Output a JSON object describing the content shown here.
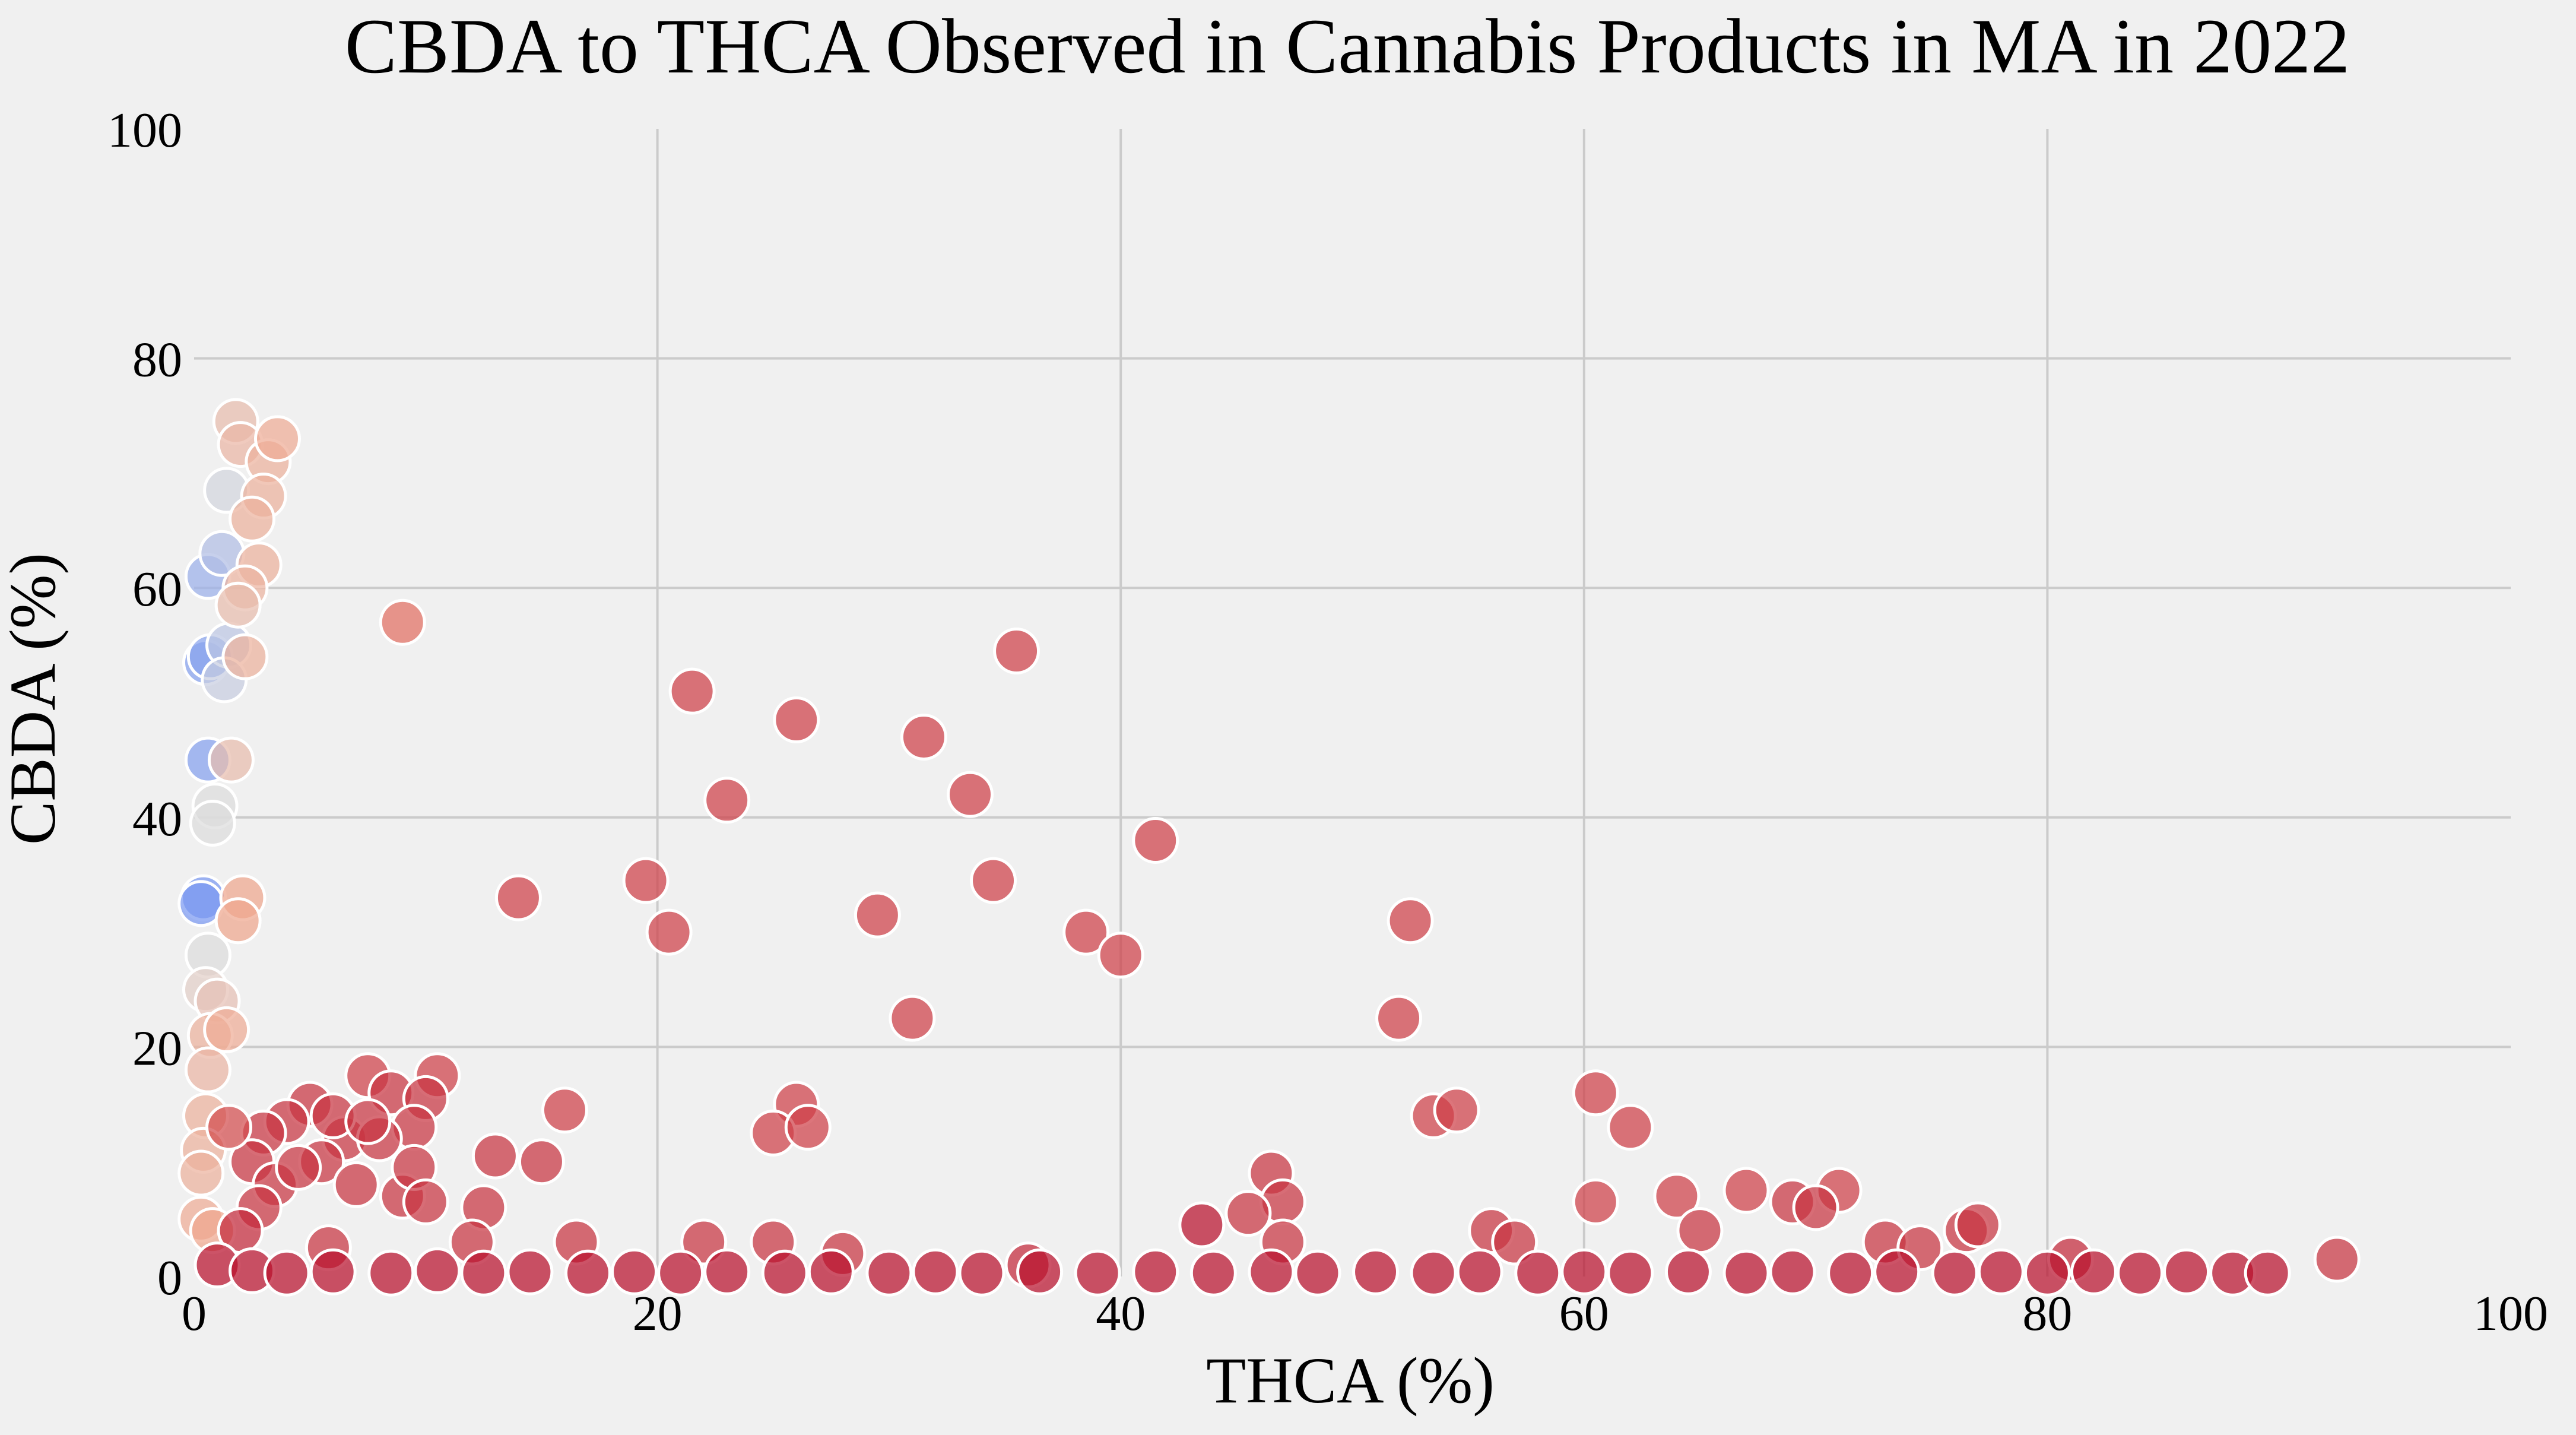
{
  "chart_data": {
    "type": "scatter",
    "title": "CBDA to THCA Observed in Cannabis Products in MA in 2022",
    "xlabel": "THCA (%)",
    "ylabel": "CBDA (%)",
    "xlim": [
      0,
      100
    ],
    "ylim": [
      0,
      100
    ],
    "xticks": [
      "0",
      "20",
      "40",
      "60",
      "80",
      "100"
    ],
    "yticks": [
      "0",
      "20",
      "40",
      "60",
      "80",
      "100"
    ],
    "grid": true,
    "legend": "none",
    "colormap": "coolwarm",
    "colors": {
      "background": "#f0f0f0",
      "grid": "#cbcbcb",
      "marker_edge": "#ffffff",
      "low": "#6f92f3",
      "mid": "#dddcdc",
      "high": "#b40426"
    },
    "points": [
      [
        0.4,
        33,
        0.05
      ],
      [
        0.3,
        32.5,
        0.05
      ],
      [
        0.6,
        45,
        0.1
      ],
      [
        0.5,
        53.5,
        0.1
      ],
      [
        0.7,
        54,
        0.12
      ],
      [
        0.6,
        61,
        0.2
      ],
      [
        1.2,
        63,
        0.3
      ],
      [
        1.5,
        55,
        0.35
      ],
      [
        1.3,
        52,
        0.4
      ],
      [
        1.4,
        68.5,
        0.45
      ],
      [
        0.9,
        41,
        0.5
      ],
      [
        0.8,
        39.5,
        0.5
      ],
      [
        0.6,
        28,
        0.5
      ],
      [
        0.5,
        25,
        0.55
      ],
      [
        1.0,
        24,
        0.6
      ],
      [
        1.8,
        74.5,
        0.62
      ],
      [
        2.0,
        72.5,
        0.64
      ],
      [
        3.2,
        71,
        0.66
      ],
      [
        3.6,
        73,
        0.68
      ],
      [
        3.0,
        68,
        0.66
      ],
      [
        2.5,
        66,
        0.66
      ],
      [
        2.8,
        62,
        0.66
      ],
      [
        2.2,
        60,
        0.65
      ],
      [
        1.9,
        58.5,
        0.62
      ],
      [
        2.2,
        54,
        0.66
      ],
      [
        1.6,
        45,
        0.62
      ],
      [
        2.1,
        33,
        0.7
      ],
      [
        1.9,
        31,
        0.7
      ],
      [
        0.7,
        21,
        0.66
      ],
      [
        1.4,
        21.5,
        0.68
      ],
      [
        0.6,
        18,
        0.64
      ],
      [
        0.5,
        14,
        0.66
      ],
      [
        0.4,
        11,
        0.66
      ],
      [
        0.3,
        9,
        0.66
      ],
      [
        0.3,
        5,
        0.68
      ],
      [
        0.8,
        4,
        0.7
      ],
      [
        9.0,
        57,
        0.82
      ],
      [
        21.5,
        51,
        0.9
      ],
      [
        26.0,
        48.5,
        0.9
      ],
      [
        23.0,
        41.5,
        0.9
      ],
      [
        14.0,
        33,
        0.9
      ],
      [
        19.5,
        34.5,
        0.9
      ],
      [
        20.5,
        30,
        0.9
      ],
      [
        31.5,
        47,
        0.9
      ],
      [
        33.5,
        42,
        0.9
      ],
      [
        35.5,
        54.5,
        0.9
      ],
      [
        29.5,
        31.5,
        0.9
      ],
      [
        34.5,
        34.5,
        0.9
      ],
      [
        31.0,
        22.5,
        0.9
      ],
      [
        38.5,
        30,
        0.9
      ],
      [
        40.0,
        28,
        0.9
      ],
      [
        41.5,
        38,
        0.9
      ],
      [
        52.5,
        31,
        0.9
      ],
      [
        52.0,
        22.5,
        0.9
      ],
      [
        53.5,
        14,
        0.9
      ],
      [
        54.5,
        14.5,
        0.9
      ],
      [
        60.5,
        16,
        0.9
      ],
      [
        62.0,
        13,
        0.9
      ],
      [
        60.5,
        6.5,
        0.9
      ],
      [
        64.0,
        7,
        0.9
      ],
      [
        65.0,
        4,
        0.92
      ],
      [
        67.0,
        7.5,
        0.9
      ],
      [
        69.0,
        6.5,
        0.92
      ],
      [
        71.0,
        7.5,
        0.9
      ],
      [
        70.0,
        6,
        0.92
      ],
      [
        46.5,
        9,
        0.92
      ],
      [
        47.0,
        6.5,
        0.92
      ],
      [
        45.5,
        5.5,
        0.92
      ],
      [
        43.5,
        4.5,
        0.98
      ],
      [
        47.0,
        3,
        0.92
      ],
      [
        56.0,
        4,
        0.92
      ],
      [
        57.0,
        3,
        0.92
      ],
      [
        73.0,
        3,
        0.92
      ],
      [
        74.5,
        2.5,
        0.92
      ],
      [
        76.5,
        4,
        0.92
      ],
      [
        77.0,
        4.5,
        0.92
      ],
      [
        81.0,
        1.5,
        0.94
      ],
      [
        92.5,
        1.5,
        0.92
      ],
      [
        26.0,
        15,
        0.9
      ],
      [
        25.0,
        12.5,
        0.9
      ],
      [
        26.5,
        13,
        0.9
      ],
      [
        12.5,
        6,
        0.92
      ],
      [
        13.0,
        10.5,
        0.92
      ],
      [
        15.0,
        10,
        0.92
      ],
      [
        16.0,
        14.5,
        0.9
      ],
      [
        10.5,
        17.5,
        0.9
      ],
      [
        7.5,
        17.5,
        0.9
      ],
      [
        8.5,
        16,
        0.92
      ],
      [
        10.0,
        15.5,
        0.92
      ],
      [
        9.5,
        13,
        0.92
      ],
      [
        5.0,
        15,
        0.92
      ],
      [
        6.5,
        12,
        0.92
      ],
      [
        5.5,
        10,
        0.92
      ],
      [
        4.0,
        13.5,
        0.92
      ],
      [
        3.0,
        12.5,
        0.92
      ],
      [
        2.5,
        10,
        0.92
      ],
      [
        3.5,
        8,
        0.92
      ],
      [
        4.5,
        9.5,
        0.92
      ],
      [
        7.0,
        8,
        0.92
      ],
      [
        8.0,
        12,
        0.92
      ],
      [
        9.0,
        7,
        0.92
      ],
      [
        9.5,
        9.5,
        0.92
      ],
      [
        10.0,
        6.5,
        0.92
      ],
      [
        6.0,
        14,
        0.92
      ],
      [
        7.5,
        13.5,
        0.92
      ],
      [
        2.8,
        6,
        0.92
      ],
      [
        2.0,
        4,
        0.94
      ],
      [
        1.5,
        13,
        0.88
      ],
      [
        5.8,
        2.5,
        0.92
      ],
      [
        12.0,
        3,
        0.92
      ],
      [
        16.5,
        3,
        0.92
      ],
      [
        22.0,
        3,
        0.92
      ],
      [
        25.0,
        3,
        0.92
      ],
      [
        28.0,
        2,
        0.92
      ],
      [
        36.0,
        1,
        0.94
      ],
      [
        1.0,
        1,
        0.98
      ],
      [
        2.5,
        0.5,
        0.98
      ],
      [
        4.0,
        0.3,
        0.98
      ],
      [
        6.0,
        0.4,
        0.98
      ],
      [
        8.5,
        0.3,
        0.98
      ],
      [
        10.5,
        0.5,
        0.98
      ],
      [
        12.5,
        0.3,
        0.98
      ],
      [
        14.5,
        0.4,
        0.98
      ],
      [
        17.0,
        0.3,
        0.98
      ],
      [
        19.0,
        0.4,
        0.98
      ],
      [
        21.0,
        0.3,
        0.98
      ],
      [
        23.0,
        0.4,
        0.98
      ],
      [
        25.5,
        0.3,
        0.98
      ],
      [
        27.5,
        0.4,
        0.98
      ],
      [
        30.0,
        0.3,
        0.98
      ],
      [
        32.0,
        0.4,
        0.98
      ],
      [
        34.0,
        0.3,
        0.98
      ],
      [
        36.5,
        0.4,
        0.98
      ],
      [
        39.0,
        0.3,
        0.98
      ],
      [
        41.5,
        0.4,
        0.98
      ],
      [
        44.0,
        0.3,
        0.98
      ],
      [
        46.5,
        0.4,
        0.98
      ],
      [
        48.5,
        0.3,
        0.98
      ],
      [
        51.0,
        0.4,
        0.98
      ],
      [
        53.5,
        0.3,
        0.98
      ],
      [
        55.5,
        0.4,
        0.98
      ],
      [
        58.0,
        0.3,
        0.98
      ],
      [
        60.0,
        0.4,
        0.98
      ],
      [
        62.0,
        0.3,
        0.98
      ],
      [
        64.5,
        0.4,
        0.98
      ],
      [
        67.0,
        0.3,
        0.98
      ],
      [
        69.0,
        0.4,
        0.98
      ],
      [
        71.5,
        0.3,
        0.98
      ],
      [
        73.5,
        0.4,
        0.98
      ],
      [
        76.0,
        0.3,
        0.98
      ],
      [
        78.0,
        0.4,
        0.98
      ],
      [
        80.0,
        0.3,
        0.98
      ],
      [
        82.0,
        0.4,
        0.98
      ],
      [
        84.0,
        0.3,
        0.98
      ],
      [
        86.0,
        0.4,
        0.98
      ],
      [
        88.0,
        0.3,
        0.98
      ],
      [
        89.5,
        0.3,
        0.98
      ]
    ]
  }
}
